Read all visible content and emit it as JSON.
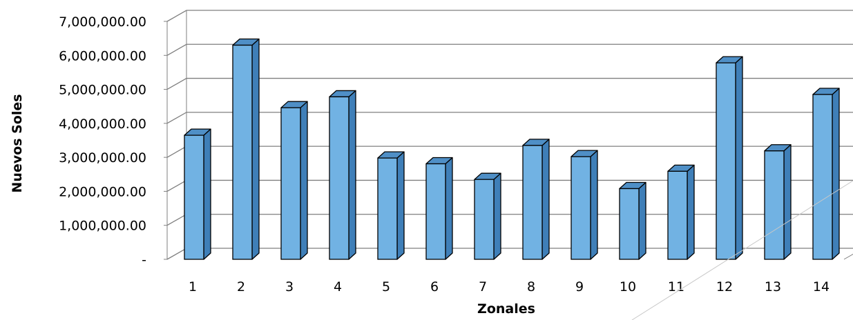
{
  "chart_data": {
    "type": "bar",
    "title": "",
    "xlabel": "Zonales",
    "ylabel": "Nuevos Soles",
    "categories": [
      "1",
      "2",
      "3",
      "4",
      "5",
      "6",
      "7",
      "8",
      "9",
      "10",
      "11",
      "12",
      "13",
      "14"
    ],
    "values": [
      3650000,
      6300000,
      4460000,
      4780000,
      2980000,
      2810000,
      2350000,
      3350000,
      3020000,
      2080000,
      2590000,
      5780000,
      3190000,
      4850000
    ],
    "ylim": [
      0,
      7000000
    ],
    "yticks": [
      0,
      1000000,
      2000000,
      3000000,
      4000000,
      5000000,
      6000000,
      7000000
    ],
    "ytick_labels": [
      "-",
      "1,000,000.00",
      "2,000,000.00",
      "3,000,000.00",
      "4,000,000.00",
      "5,000,000.00",
      "6,000,000.00",
      "7,000,000.00"
    ],
    "grid": true,
    "style": "3d-column",
    "colors": {
      "bar_front": "#71b2e3",
      "bar_side": "#3f7fb8",
      "bar_top": "#4f8fc6",
      "grid": "#7f7f7f"
    }
  }
}
